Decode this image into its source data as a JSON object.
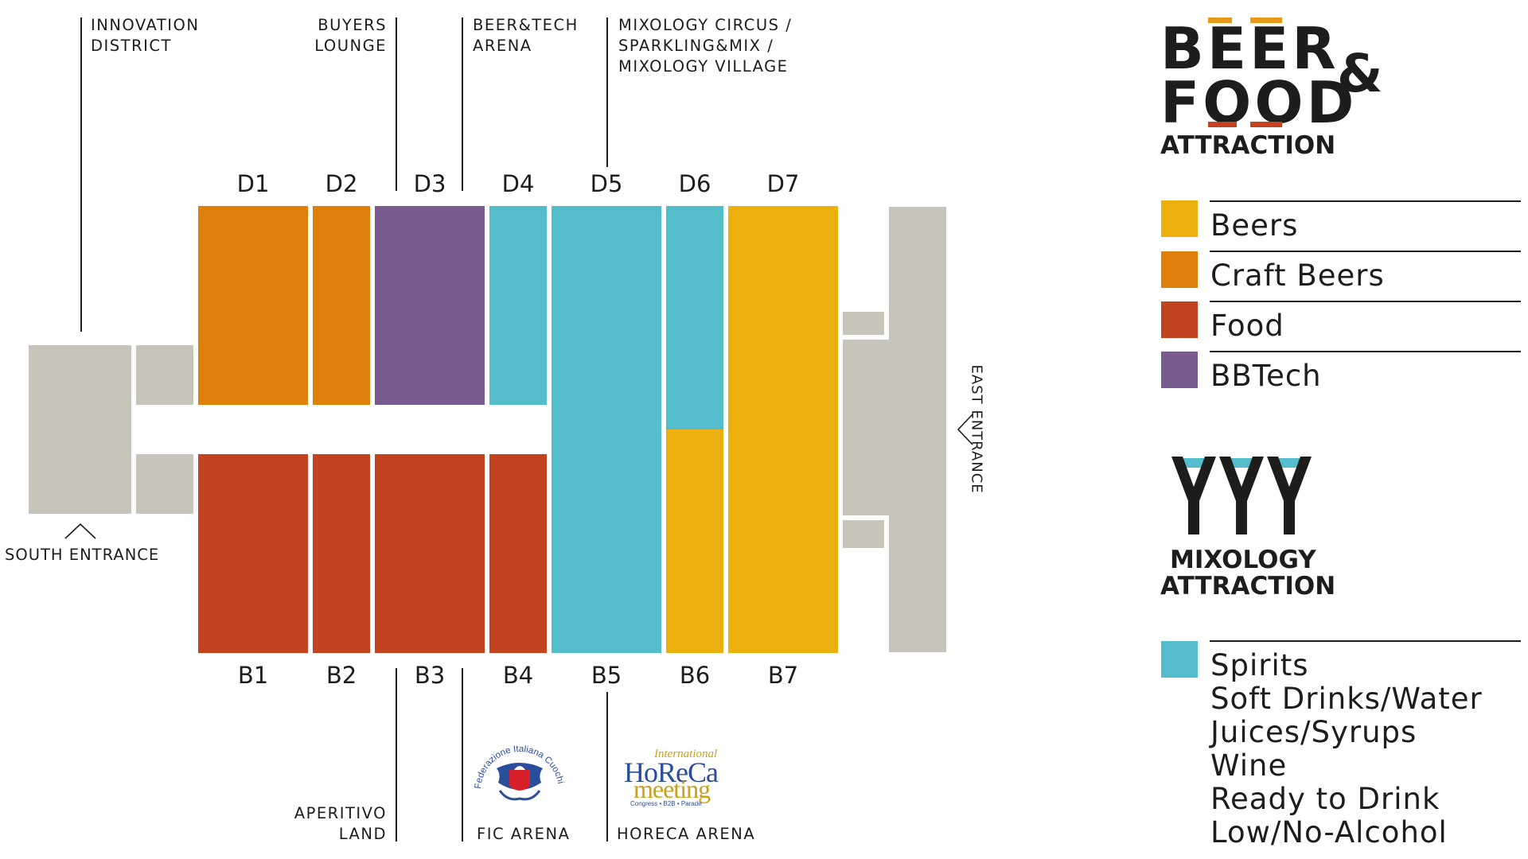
{
  "colors": {
    "beers": "#ebb00d",
    "craft_beers": "#df800b",
    "food": "#c2431f",
    "bbtech": "#785c90",
    "spirits": "#53bdcc",
    "service": "#c7c4b9",
    "accent_orange": "#e79a17",
    "accent_red": "#c2431f"
  },
  "halls_top": [
    {
      "code": "D1",
      "category": "craft_beers"
    },
    {
      "code": "D2",
      "category": "craft_beers"
    },
    {
      "code": "D3",
      "category": "bbtech"
    },
    {
      "code": "D4",
      "category": "spirits"
    },
    {
      "code": "D5",
      "category": "spirits"
    },
    {
      "code": "D6",
      "category": "spirits"
    },
    {
      "code": "D7",
      "category": "beers"
    }
  ],
  "halls_bottom": [
    {
      "code": "B1",
      "category": "food"
    },
    {
      "code": "B2",
      "category": "food"
    },
    {
      "code": "B3",
      "category": "food"
    },
    {
      "code": "B4",
      "category": "food"
    },
    {
      "code": "B5",
      "category": "spirits"
    },
    {
      "code": "B6",
      "category": "beers"
    },
    {
      "code": "B7",
      "category": "beers"
    }
  ],
  "annotations_top": {
    "innovation_district": "INNOVATION\nDISTRICT",
    "buyers_lounge": "BUYERS\nLOUNGE",
    "beer_tech_arena": "BEER&TECH\nARENA",
    "mixology": "MIXOLOGY CIRCUS /\nSPARKLING&MIX /\nMIXOLOGY VILLAGE"
  },
  "annotations_bottom": {
    "aperitivo_land": "APERITIVO\nLAND",
    "fic_arena": "FIC ARENA",
    "horeca_arena": "HORECA ARENA"
  },
  "entrances": {
    "south": "SOUTH ENTRANCE",
    "east": "EAST ENTRANCE"
  },
  "sponsors": {
    "fic_arc_text": "Federazione Italiana Cuochi",
    "horeca_top": "International",
    "horeca_main": "HoReCa",
    "horeca_sub": "meeting",
    "horeca_tagline": "Congress • B2B • Parade"
  },
  "brand_logo": {
    "line1": "BEER",
    "ampersand": "&",
    "line2": "FOOD",
    "line3": "ATTRACTION"
  },
  "legend_beer_food": [
    {
      "label": "Beers",
      "category": "beers"
    },
    {
      "label": "Craft Beers",
      "category": "craft_beers"
    },
    {
      "label": "Food",
      "category": "food"
    },
    {
      "label": "BBTech",
      "category": "bbtech"
    }
  ],
  "mixology_logo": {
    "line1": "MIXOLOGY",
    "line2": "ATTRACTION"
  },
  "legend_mixology": {
    "category": "spirits",
    "items": [
      "Spirits",
      "Soft Drinks/Water",
      "Juices/Syrups",
      "Wine",
      "Ready to Drink",
      "Low/No-Alcohol"
    ]
  }
}
